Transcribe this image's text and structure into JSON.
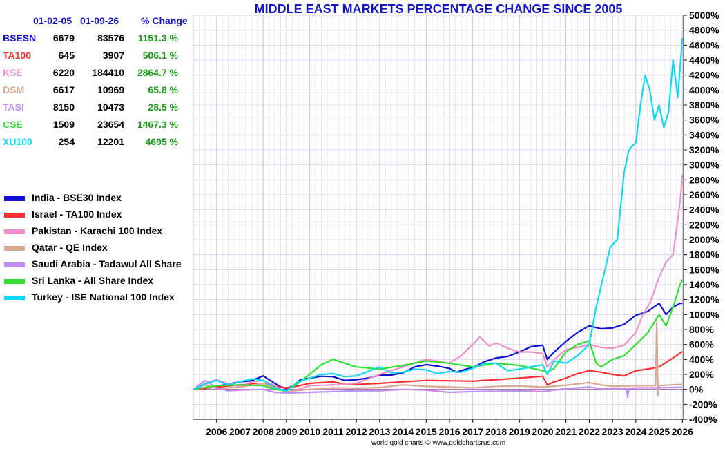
{
  "title": "MIDDLE EAST MARKETS PERCENTAGE CHANGE SINCE 2005",
  "credit": "world gold charts © www.goldchartsrus.com",
  "table": {
    "headers": [
      "01-02-05",
      "01-09-26",
      "% Change"
    ],
    "rows": [
      {
        "code": "BSESN",
        "start": "6679",
        "end": "83576",
        "change": "1151.3 %",
        "color": "#1010d0"
      },
      {
        "code": "TA100",
        "start": "645",
        "end": "3907",
        "change": "506.1 %",
        "color": "#ff3030"
      },
      {
        "code": "KSE",
        "start": "6220",
        "end": "184410",
        "change": "2864.7 %",
        "color": "#f090c8"
      },
      {
        "code": "DSM",
        "start": "6617",
        "end": "10969",
        "change": "65.8 %",
        "color": "#d8a890"
      },
      {
        "code": "TASI",
        "start": "8150",
        "end": "10473",
        "change": "28.5 %",
        "color": "#c090f0"
      },
      {
        "code": "CSE",
        "start": "1509",
        "end": "23654",
        "change": "1467.3 %",
        "color": "#30e030"
      },
      {
        "code": "XU100",
        "start": "254",
        "end": "12201",
        "change": "4695 %",
        "color": "#10d8f0"
      }
    ]
  },
  "legend": [
    {
      "label": "India - BSE30 Index",
      "color": "#1010d0"
    },
    {
      "label": "Israel - TA100 Index",
      "color": "#ff3030"
    },
    {
      "label": "Pakistan - Karachi 100 Index",
      "color": "#f090c8"
    },
    {
      "label": "Qatar - QE Index",
      "color": "#d8a890"
    },
    {
      "label": "Saudi Arabia - Tadawul All Share",
      "color": "#c090f0"
    },
    {
      "label": "Sri Lanka - All Share Index",
      "color": "#30e030"
    },
    {
      "label": "Turkey - ISE National 100 Index",
      "color": "#10d8f0"
    }
  ],
  "chart_data": {
    "type": "line",
    "title": "MIDDLE EAST MARKETS PERCENTAGE CHANGE SINCE 2005",
    "xlabel": "",
    "ylabel": "",
    "ylim": [
      -400,
      5000
    ],
    "xlim": [
      2005.0,
      2026.05
    ],
    "y_ticks": [
      -400,
      -200,
      0,
      200,
      400,
      600,
      800,
      1000,
      1200,
      1400,
      1600,
      1800,
      2000,
      2200,
      2400,
      2600,
      2800,
      3000,
      3200,
      3400,
      3600,
      3800,
      4000,
      4200,
      4400,
      4600,
      4800,
      5000
    ],
    "y_tick_labels": [
      "-400%",
      "-200%",
      "0%",
      "200%",
      "400%",
      "600%",
      "800%",
      "1000%",
      "1200%",
      "1400%",
      "1600%",
      "1800%",
      "2000%",
      "2200%",
      "2400%",
      "2600%",
      "2800%",
      "3000%",
      "3200%",
      "3400%",
      "3600%",
      "3800%",
      "4000%",
      "4200%",
      "4400%",
      "4600%",
      "4800%",
      "5000%"
    ],
    "x_tick_labels": [
      "2006",
      "2007",
      "2008",
      "2009",
      "2010",
      "2011",
      "2012",
      "2013",
      "2014",
      "2015",
      "2016",
      "2017",
      "2018",
      "2019",
      "2020",
      "2021",
      "2022",
      "2023",
      "2024",
      "2025",
      "2026"
    ],
    "grid": true,
    "legend_position": "left",
    "series": [
      {
        "name": "India - BSE30 Index",
        "color": "#1010d0",
        "x": [
          2005.0,
          2005.5,
          2006.0,
          2006.5,
          2007.0,
          2007.5,
          2008.0,
          2008.3,
          2008.7,
          2009.0,
          2009.3,
          2009.6,
          2010.0,
          2010.5,
          2011.0,
          2011.5,
          2012.0,
          2012.5,
          2013.0,
          2013.5,
          2014.0,
          2014.5,
          2015.0,
          2015.5,
          2016.0,
          2016.3,
          2016.7,
          2017.0,
          2017.5,
          2018.0,
          2018.5,
          2019.0,
          2019.5,
          2020.0,
          2020.2,
          2020.5,
          2021.0,
          2021.5,
          2022.0,
          2022.5,
          2023.0,
          2023.5,
          2024.0,
          2024.5,
          2025.0,
          2025.3,
          2025.6,
          2025.9,
          2026.0
        ],
        "y": [
          0,
          15,
          40,
          70,
          100,
          115,
          180,
          120,
          40,
          10,
          50,
          130,
          150,
          175,
          170,
          120,
          130,
          150,
          190,
          190,
          220,
          300,
          330,
          310,
          280,
          230,
          270,
          290,
          370,
          420,
          440,
          500,
          570,
          590,
          400,
          500,
          640,
          760,
          850,
          810,
          820,
          870,
          990,
          1040,
          1150,
          1000,
          1100,
          1150,
          1151
        ]
      },
      {
        "name": "Israel - TA100 Index",
        "color": "#ff3030",
        "x": [
          2005.0,
          2006.0,
          2007.0,
          2008.0,
          2008.5,
          2009.0,
          2009.5,
          2010.0,
          2011.0,
          2011.5,
          2012.0,
          2013.0,
          2014.0,
          2015.0,
          2016.0,
          2017.0,
          2018.0,
          2019.0,
          2020.0,
          2020.2,
          2020.5,
          2021.0,
          2021.5,
          2022.0,
          2022.5,
          2023.0,
          2023.5,
          2024.0,
          2024.5,
          2025.0,
          2025.5,
          2026.0
        ],
        "y": [
          0,
          30,
          60,
          80,
          40,
          20,
          45,
          80,
          100,
          70,
          65,
          80,
          100,
          120,
          115,
          110,
          130,
          150,
          175,
          60,
          100,
          150,
          210,
          250,
          230,
          200,
          180,
          250,
          270,
          300,
          400,
          506
        ]
      },
      {
        "name": "Pakistan - Karachi 100 Index",
        "color": "#f090c8",
        "x": [
          2005.0,
          2005.5,
          2006.0,
          2006.5,
          2007.0,
          2007.5,
          2008.0,
          2008.5,
          2009.0,
          2009.5,
          2010.0,
          2011.0,
          2012.0,
          2012.5,
          2013.0,
          2014.0,
          2015.0,
          2016.0,
          2016.5,
          2017.0,
          2017.3,
          2017.7,
          2018.0,
          2018.5,
          2019.0,
          2019.5,
          2020.0,
          2020.2,
          2020.5,
          2021.0,
          2021.5,
          2022.0,
          2022.5,
          2023.0,
          2023.5,
          2024.0,
          2024.3,
          2024.6,
          2025.0,
          2025.3,
          2025.6,
          2025.9,
          2026.0
        ],
        "y": [
          0,
          80,
          130,
          70,
          40,
          100,
          120,
          50,
          -50,
          0,
          50,
          60,
          80,
          140,
          200,
          300,
          400,
          350,
          450,
          600,
          700,
          580,
          620,
          550,
          500,
          500,
          480,
          300,
          400,
          530,
          560,
          600,
          560,
          550,
          590,
          760,
          1000,
          1150,
          1500,
          1700,
          1800,
          2500,
          2864
        ]
      },
      {
        "name": "Qatar - QE Index",
        "color": "#d8a890",
        "x": [
          2005.0,
          2005.5,
          2006.0,
          2007.0,
          2008.0,
          2008.5,
          2009.0,
          2010.0,
          2011.0,
          2012.0,
          2013.0,
          2014.0,
          2015.0,
          2016.0,
          2017.0,
          2018.0,
          2019.0,
          2020.0,
          2021.0,
          2022.0,
          2022.5,
          2023.0,
          2024.0,
          2024.85,
          2024.9,
          2024.95,
          2025.0,
          2025.5,
          2026.0
        ],
        "y": [
          0,
          60,
          10,
          30,
          80,
          10,
          -30,
          0,
          20,
          15,
          25,
          60,
          40,
          30,
          20,
          40,
          45,
          30,
          55,
          90,
          60,
          40,
          50,
          50,
          900,
          -80,
          50,
          60,
          66
        ]
      },
      {
        "name": "Saudi Arabia - Tadawul All Share",
        "color": "#c090f0",
        "x": [
          2005.0,
          2005.5,
          2006.0,
          2006.5,
          2007.0,
          2008.0,
          2008.5,
          2009.0,
          2010.0,
          2011.0,
          2012.0,
          2013.0,
          2014.0,
          2015.0,
          2016.0,
          2017.0,
          2018.0,
          2019.0,
          2020.0,
          2021.0,
          2022.0,
          2022.5,
          2023.0,
          2023.6,
          2023.65,
          2023.7,
          2024.0,
          2025.0,
          2026.0
        ],
        "y": [
          0,
          120,
          20,
          -20,
          -10,
          0,
          -40,
          -50,
          -40,
          -30,
          -20,
          -20,
          0,
          -10,
          -40,
          -30,
          -25,
          -20,
          -30,
          10,
          30,
          10,
          10,
          10,
          -110,
          10,
          20,
          20,
          28
        ]
      },
      {
        "name": "Sri Lanka - All Share Index",
        "color": "#30e030",
        "x": [
          2005.0,
          2006.0,
          2007.0,
          2008.0,
          2008.5,
          2009.0,
          2009.5,
          2010.0,
          2010.5,
          2011.0,
          2011.5,
          2012.0,
          2013.0,
          2014.0,
          2015.0,
          2016.0,
          2017.0,
          2018.0,
          2019.0,
          2020.0,
          2020.2,
          2020.5,
          2021.0,
          2021.5,
          2022.0,
          2022.3,
          2022.5,
          2023.0,
          2023.5,
          2024.0,
          2024.5,
          2025.0,
          2025.3,
          2025.6,
          2025.9,
          2026.0
        ],
        "y": [
          0,
          50,
          60,
          50,
          0,
          -20,
          80,
          200,
          330,
          400,
          350,
          300,
          270,
          320,
          380,
          350,
          300,
          350,
          320,
          250,
          230,
          280,
          500,
          600,
          650,
          350,
          300,
          400,
          450,
          600,
          750,
          1000,
          850,
          1100,
          1400,
          1467
        ]
      },
      {
        "name": "Turkey - ISE National 100 Index",
        "color": "#10d8f0",
        "x": [
          2005.0,
          2005.5,
          2006.0,
          2006.5,
          2007.0,
          2007.5,
          2008.0,
          2008.5,
          2009.0,
          2009.5,
          2010.0,
          2010.5,
          2011.0,
          2011.5,
          2012.0,
          2012.5,
          2013.0,
          2013.5,
          2014.0,
          2014.5,
          2015.0,
          2015.5,
          2016.0,
          2016.5,
          2017.0,
          2017.5,
          2018.0,
          2018.5,
          2019.0,
          2019.5,
          2020.0,
          2020.2,
          2020.5,
          2021.0,
          2021.5,
          2022.0,
          2022.3,
          2022.6,
          2022.9,
          2023.2,
          2023.5,
          2023.7,
          2024.0,
          2024.2,
          2024.4,
          2024.6,
          2024.8,
          2025.0,
          2025.2,
          2025.4,
          2025.6,
          2025.8,
          2026.0
        ],
        "y": [
          0,
          70,
          120,
          60,
          100,
          140,
          120,
          20,
          -20,
          100,
          150,
          200,
          210,
          170,
          180,
          240,
          300,
          220,
          230,
          270,
          260,
          210,
          240,
          230,
          280,
          350,
          350,
          250,
          270,
          300,
          330,
          200,
          380,
          350,
          450,
          600,
          1100,
          1500,
          1900,
          2000,
          2900,
          3200,
          3300,
          3800,
          4200,
          4000,
          3600,
          3800,
          3500,
          3700,
          4400,
          3900,
          4695
        ]
      }
    ]
  }
}
